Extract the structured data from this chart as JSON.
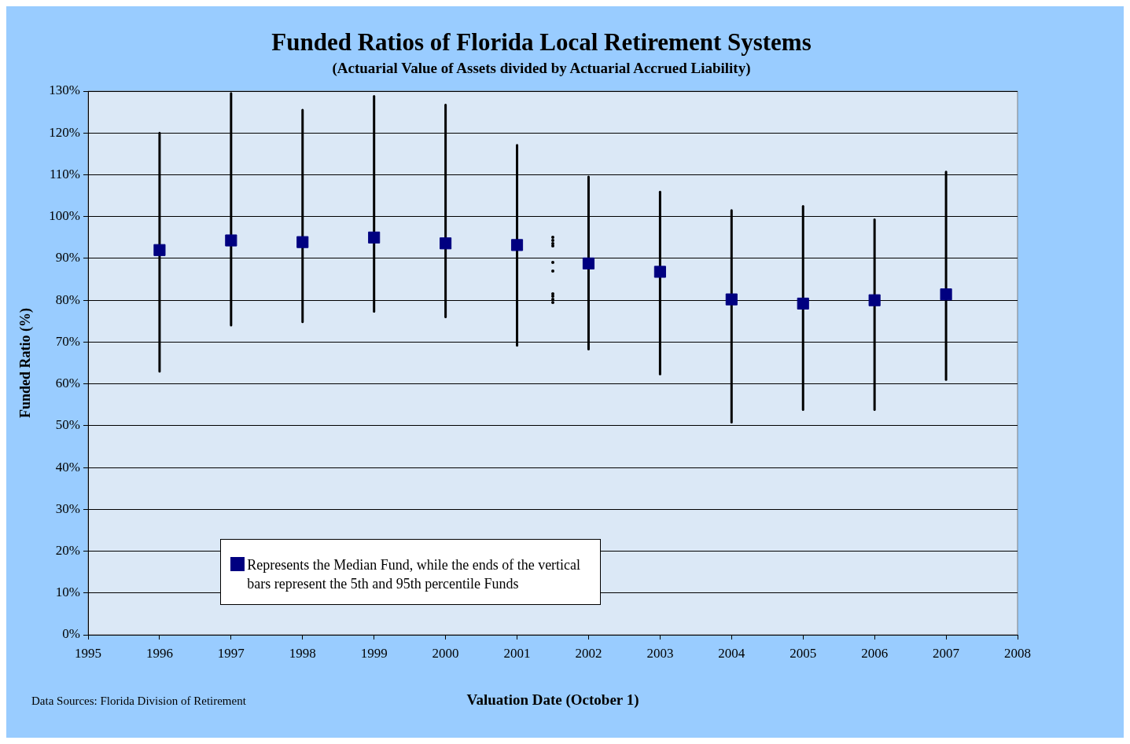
{
  "chart_data": {
    "type": "scatter",
    "title": "Funded Ratios of Florida Local Retirement Systems",
    "subtitle": "(Actuarial Value of Assets divided by Actuarial Accrued Liability)",
    "xlabel": "Valuation Date (October 1)",
    "ylabel": "Funded Ratio (%)",
    "annotations": [
      "Data Sources:  Florida Division of Retirement"
    ],
    "x": [
      1996,
      1997,
      1998,
      1999,
      2000,
      2001,
      2002,
      2003,
      2004,
      2005,
      2006,
      2007
    ],
    "series": [
      {
        "name": "Represents the Median Fund, while the ends of the vertical bars represent the 5th and 95th percentile Funds",
        "color": "#000080",
        "values": [
          92,
          94.3,
          93.9,
          95,
          93.6,
          93.2,
          88.8,
          86.8,
          80.2,
          79.2,
          80,
          81.4
        ],
        "errors": [
          [
            63,
            120
          ],
          [
            74,
            129.5
          ],
          [
            74.8,
            125.5
          ],
          [
            77.3,
            128.8
          ],
          [
            76,
            126.7
          ],
          [
            69.2,
            117.1
          ],
          [
            68.3,
            109.5
          ],
          [
            62.3,
            105.9
          ],
          [
            50.8,
            101.5
          ],
          [
            53.8,
            102.5
          ],
          [
            53.8,
            99.3
          ],
          [
            61,
            110.7
          ]
        ]
      }
    ],
    "xlim": [
      1995,
      2008
    ],
    "xticks": [
      1995,
      1996,
      1997,
      1998,
      1999,
      2000,
      2001,
      2002,
      2003,
      2004,
      2005,
      2006,
      2007,
      2008
    ],
    "ylim": [
      0,
      130
    ],
    "yticks": [
      {
        "value": 0,
        "label": "0%"
      },
      {
        "value": 10,
        "label": "10%"
      },
      {
        "value": 20,
        "label": "20%"
      },
      {
        "value": 30,
        "label": "30%"
      },
      {
        "value": 40,
        "label": "40%"
      },
      {
        "value": 50,
        "label": "50%"
      },
      {
        "value": 60,
        "label": "60%"
      },
      {
        "value": 70,
        "label": "70%"
      },
      {
        "value": 80,
        "label": "80%"
      },
      {
        "value": 90,
        "label": "90%"
      },
      {
        "value": 100,
        "label": "100%"
      },
      {
        "value": 110,
        "label": "110%"
      },
      {
        "value": 120,
        "label": "120%"
      },
      {
        "value": 130,
        "label": "130%"
      }
    ],
    "grid": "y",
    "legend": "bottom left",
    "marker": "square"
  }
}
